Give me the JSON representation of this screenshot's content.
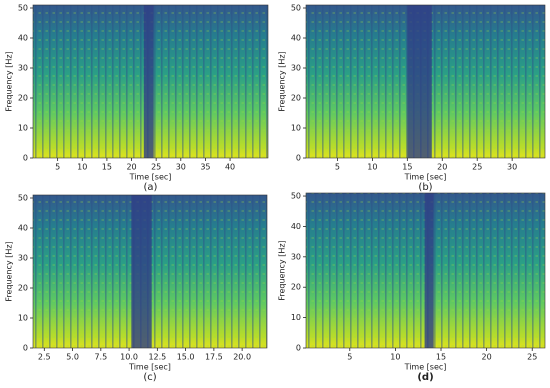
{
  "chart_data": [
    {
      "type": "spectrogram",
      "caption": "(a)",
      "xlabel": "Time [sec]",
      "ylabel": "Frequency [Hz]",
      "xlim": [
        0,
        47.7
      ],
      "ylim": [
        0,
        51
      ],
      "xticks": [
        5,
        10,
        15,
        20,
        25,
        30,
        35,
        40
      ],
      "yticks": [
        0,
        10,
        20,
        30,
        40,
        50
      ],
      "quiet_intervals": [
        [
          22.5,
          24.5
        ]
      ]
    },
    {
      "type": "spectrogram",
      "caption": "(b)",
      "xlabel": "Time [sec]",
      "ylabel": "Frequency [Hz]",
      "xlim": [
        0.5,
        34.7
      ],
      "ylim": [
        0,
        51
      ],
      "xticks": [
        5,
        10,
        15,
        20,
        25,
        30
      ],
      "yticks": [
        0,
        10,
        20,
        30,
        40,
        50
      ],
      "quiet_intervals": [
        [
          15,
          18.5
        ]
      ]
    },
    {
      "type": "spectrogram",
      "caption": "(c)",
      "xlabel": "Time [sec]",
      "ylabel": "Frequency [Hz]",
      "xlim": [
        1.5,
        22.2
      ],
      "ylim": [
        0,
        51
      ],
      "xticks": [
        2.5,
        {
          "value": 5,
          "label": "5.0"
        },
        7.5,
        {
          "value": 10,
          "label": "10.0"
        },
        12.5,
        {
          "value": 15,
          "label": "15.0"
        },
        17.5,
        {
          "value": 20,
          "label": "20.0"
        }
      ],
      "yticks": [
        0,
        10,
        20,
        30,
        40,
        50
      ],
      "quiet_intervals": [
        [
          10.2,
          12
        ]
      ]
    },
    {
      "type": "spectrogram",
      "caption": "(d)",
      "xlabel": "Time [sec]",
      "ylabel": "Frequency [Hz]",
      "xlim": [
        0.2,
        26.4
      ],
      "ylim": [
        0,
        51
      ],
      "xticks": [
        5,
        10,
        15,
        20,
        25
      ],
      "yticks": [
        0,
        10,
        20,
        30,
        40,
        50
      ],
      "quiet_intervals": [
        [
          13.2,
          14.2
        ]
      ]
    }
  ]
}
